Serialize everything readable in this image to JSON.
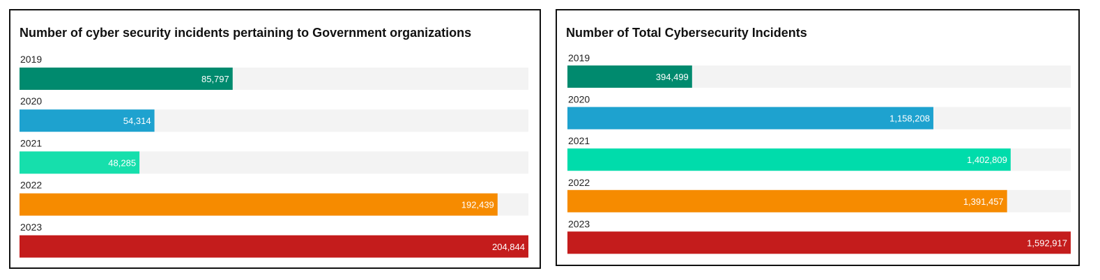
{
  "chart_data": [
    {
      "type": "bar",
      "orientation": "horizontal",
      "title": "Number of cyber security incidents pertaining to Government organizations",
      "categories": [
        "2019",
        "2020",
        "2021",
        "2022",
        "2023"
      ],
      "values": [
        85797,
        54314,
        48285,
        192439,
        204844
      ],
      "value_labels": [
        "85,797",
        "54,314",
        "48,285",
        "192,439",
        "204,844"
      ],
      "colors": [
        "#008a6e",
        "#1ea2cf",
        "#16dfac",
        "#f68b00",
        "#c41c1c"
      ],
      "xlim": [
        0,
        204844
      ],
      "grid": false,
      "legend": "none"
    },
    {
      "type": "bar",
      "orientation": "horizontal",
      "title": "Number of Total Cybersecurity Incidents",
      "categories": [
        "2019",
        "2020",
        "2021",
        "2022",
        "2023"
      ],
      "values": [
        394499,
        1158208,
        1402809,
        1391457,
        1592917
      ],
      "value_labels": [
        "394,499",
        "1,158,208",
        "1,402,809",
        "1,391,457",
        "1,592,917"
      ],
      "colors": [
        "#008a6e",
        "#1ea2cf",
        "#00dcab",
        "#f68b00",
        "#c41c1c"
      ],
      "xlim": [
        0,
        1592917
      ],
      "grid": false,
      "legend": "none"
    }
  ],
  "track_color": "#f3f3f3"
}
